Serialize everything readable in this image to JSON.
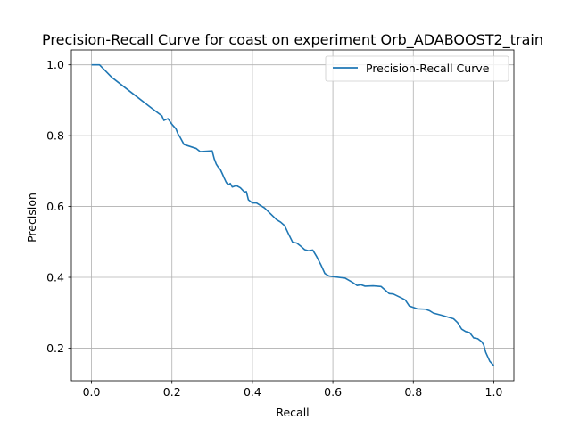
{
  "chart_data": {
    "type": "line",
    "title": "Precision-Recall Curve for coast on experiment Orb_ADABOOST2_train",
    "xlabel": "Recall",
    "ylabel": "Precision",
    "xlim": [
      -0.05,
      1.05
    ],
    "ylim": [
      0.108,
      1.042
    ],
    "xticks": [
      0.0,
      0.2,
      0.4,
      0.6,
      0.8,
      1.0
    ],
    "xtick_labels": [
      "0.0",
      "0.2",
      "0.4",
      "0.6",
      "0.8",
      "1.0"
    ],
    "yticks": [
      0.2,
      0.4,
      0.6,
      0.8,
      1.0
    ],
    "ytick_labels": [
      "0.2",
      "0.4",
      "0.6",
      "0.8",
      "1.0"
    ],
    "grid": true,
    "legend_position": "top-right",
    "series_color": "#1f77b4",
    "series": [
      {
        "name": "Precision-Recall Curve",
        "x": [
          0.0,
          0.02,
          0.05,
          0.1,
          0.15,
          0.175,
          0.18,
          0.19,
          0.2,
          0.21,
          0.215,
          0.22,
          0.23,
          0.26,
          0.27,
          0.3,
          0.305,
          0.31,
          0.315,
          0.32,
          0.325,
          0.33,
          0.335,
          0.34,
          0.345,
          0.35,
          0.36,
          0.37,
          0.38,
          0.385,
          0.39,
          0.4,
          0.41,
          0.43,
          0.44,
          0.46,
          0.47,
          0.48,
          0.49,
          0.5,
          0.51,
          0.52,
          0.53,
          0.54,
          0.55,
          0.56,
          0.57,
          0.58,
          0.59,
          0.6,
          0.63,
          0.65,
          0.66,
          0.67,
          0.68,
          0.7,
          0.72,
          0.74,
          0.75,
          0.77,
          0.78,
          0.79,
          0.8,
          0.81,
          0.83,
          0.84,
          0.85,
          0.87,
          0.9,
          0.91,
          0.92,
          0.93,
          0.94,
          0.95,
          0.96,
          0.97,
          0.975,
          0.98,
          0.99,
          1.0
        ],
        "y": [
          1.0,
          1.0,
          0.965,
          0.921,
          0.877,
          0.856,
          0.843,
          0.848,
          0.832,
          0.819,
          0.805,
          0.796,
          0.775,
          0.764,
          0.755,
          0.757,
          0.735,
          0.72,
          0.711,
          0.705,
          0.693,
          0.68,
          0.668,
          0.661,
          0.665,
          0.655,
          0.659,
          0.653,
          0.641,
          0.642,
          0.619,
          0.61,
          0.61,
          0.596,
          0.585,
          0.563,
          0.556,
          0.546,
          0.522,
          0.499,
          0.497,
          0.488,
          0.478,
          0.475,
          0.477,
          0.458,
          0.436,
          0.411,
          0.404,
          0.402,
          0.398,
          0.385,
          0.377,
          0.379,
          0.375,
          0.376,
          0.374,
          0.354,
          0.353,
          0.342,
          0.336,
          0.319,
          0.315,
          0.311,
          0.31,
          0.306,
          0.299,
          0.293,
          0.283,
          0.272,
          0.254,
          0.247,
          0.244,
          0.229,
          0.227,
          0.218,
          0.209,
          0.188,
          0.163,
          0.151
        ]
      }
    ]
  }
}
